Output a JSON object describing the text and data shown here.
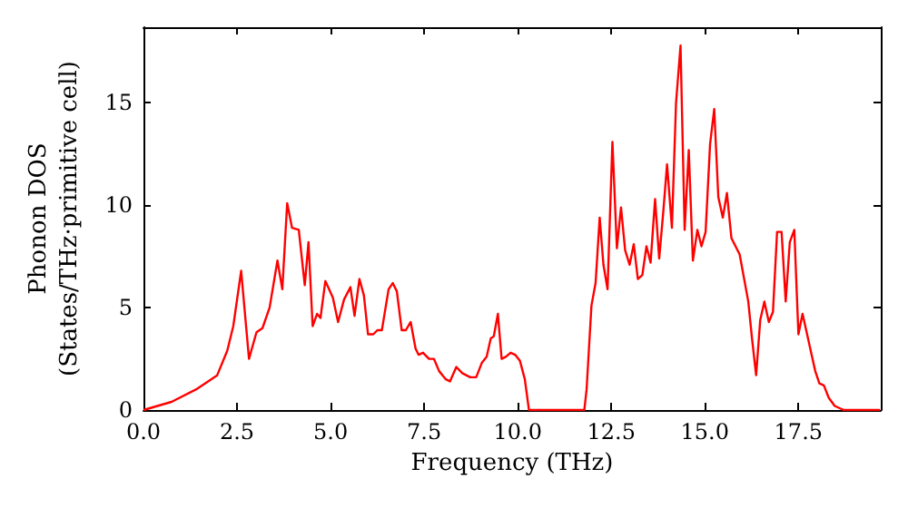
{
  "chart_data": {
    "type": "line",
    "xlabel": "Frequency (THz)",
    "ylabel": "Phonon DOS\n(States/THz·primitive cell)",
    "xlim": [
      0,
      19.7
    ],
    "ylim": [
      0,
      18.7
    ],
    "xticks": [
      {
        "value": 0,
        "label": "0.0"
      },
      {
        "value": 2.5,
        "label": "2.5"
      },
      {
        "value": 5,
        "label": "5.0"
      },
      {
        "value": 7.5,
        "label": "7.5"
      },
      {
        "value": 10,
        "label": "10.0"
      },
      {
        "value": 12.5,
        "label": "12.5"
      },
      {
        "value": 15,
        "label": "15.0"
      },
      {
        "value": 17.5,
        "label": "17.5"
      }
    ],
    "yticks": [
      0,
      5,
      10,
      15
    ],
    "grid": false,
    "marker": "none",
    "line_style": "solid",
    "series": [
      {
        "color": "#ff0000",
        "x": [
          0,
          0.75,
          1.4,
          1.97,
          2.24,
          2.4,
          2.61,
          2.82,
          3.02,
          3.18,
          3.37,
          3.58,
          3.71,
          3.84,
          3.97,
          4.15,
          4.31,
          4.41,
          4.52,
          4.64,
          4.73,
          4.86,
          5.06,
          5.2,
          5.36,
          5.53,
          5.64,
          5.77,
          5.89,
          6.0,
          6.14,
          6.25,
          6.37,
          6.55,
          6.66,
          6.77,
          6.9,
          7.01,
          7.14,
          7.27,
          7.35,
          7.47,
          7.63,
          7.76,
          7.9,
          8.08,
          8.19,
          8.36,
          8.52,
          8.73,
          8.89,
          9.04,
          9.17,
          9.28,
          9.36,
          9.47,
          9.57,
          9.68,
          9.81,
          9.93,
          10.06,
          10.19,
          10.3,
          11.78,
          11.84,
          11.97,
          12.08,
          12.19,
          12.29,
          12.4,
          12.53,
          12.65,
          12.76,
          12.87,
          12.99,
          13.1,
          13.21,
          13.33,
          13.44,
          13.55,
          13.67,
          13.78,
          13.89,
          13.99,
          14.12,
          14.23,
          14.35,
          14.46,
          14.57,
          14.68,
          14.8,
          14.91,
          15.02,
          15.14,
          15.25,
          15.36,
          15.48,
          15.59,
          15.71,
          15.82,
          15.93,
          16.05,
          16.16,
          16.26,
          16.37,
          16.48,
          16.59,
          16.71,
          16.82,
          16.93,
          17.05,
          17.16,
          17.27,
          17.39,
          17.5,
          17.61,
          17.72,
          17.84,
          17.95,
          18.06,
          18.18,
          18.31,
          18.47,
          18.71,
          19.68
        ],
        "values": [
          0,
          0.4,
          1.0,
          1.7,
          2.9,
          4.1,
          6.8,
          2.5,
          3.8,
          4.0,
          5.0,
          7.3,
          5.9,
          10.1,
          8.9,
          8.8,
          6.1,
          8.2,
          4.1,
          4.7,
          4.5,
          6.3,
          5.5,
          4.3,
          5.4,
          6.0,
          4.6,
          6.4,
          5.6,
          3.7,
          3.7,
          3.9,
          3.9,
          5.9,
          6.2,
          5.8,
          3.9,
          3.9,
          4.3,
          3.0,
          2.7,
          2.8,
          2.5,
          2.5,
          1.9,
          1.5,
          1.4,
          2.1,
          1.8,
          1.6,
          1.6,
          2.3,
          2.6,
          3.5,
          3.6,
          4.7,
          2.5,
          2.6,
          2.8,
          2.7,
          2.4,
          1.5,
          0,
          0,
          1.0,
          5.1,
          6.2,
          9.4,
          7.1,
          5.9,
          13.1,
          7.9,
          9.9,
          7.8,
          7.1,
          8.1,
          6.4,
          6.6,
          8.0,
          7.2,
          10.3,
          7.4,
          9.7,
          12.0,
          8.9,
          15.0,
          17.8,
          8.8,
          12.7,
          7.3,
          8.8,
          8.0,
          8.7,
          13.0,
          14.7,
          10.4,
          9.4,
          10.6,
          8.4,
          8.0,
          7.6,
          6.4,
          5.3,
          3.5,
          1.7,
          4.4,
          5.3,
          4.3,
          4.8,
          8.7,
          8.7,
          5.3,
          8.2,
          8.8,
          3.7,
          4.7,
          3.8,
          2.8,
          1.9,
          1.3,
          1.2,
          0.6,
          0.2,
          0,
          0
        ]
      }
    ]
  }
}
